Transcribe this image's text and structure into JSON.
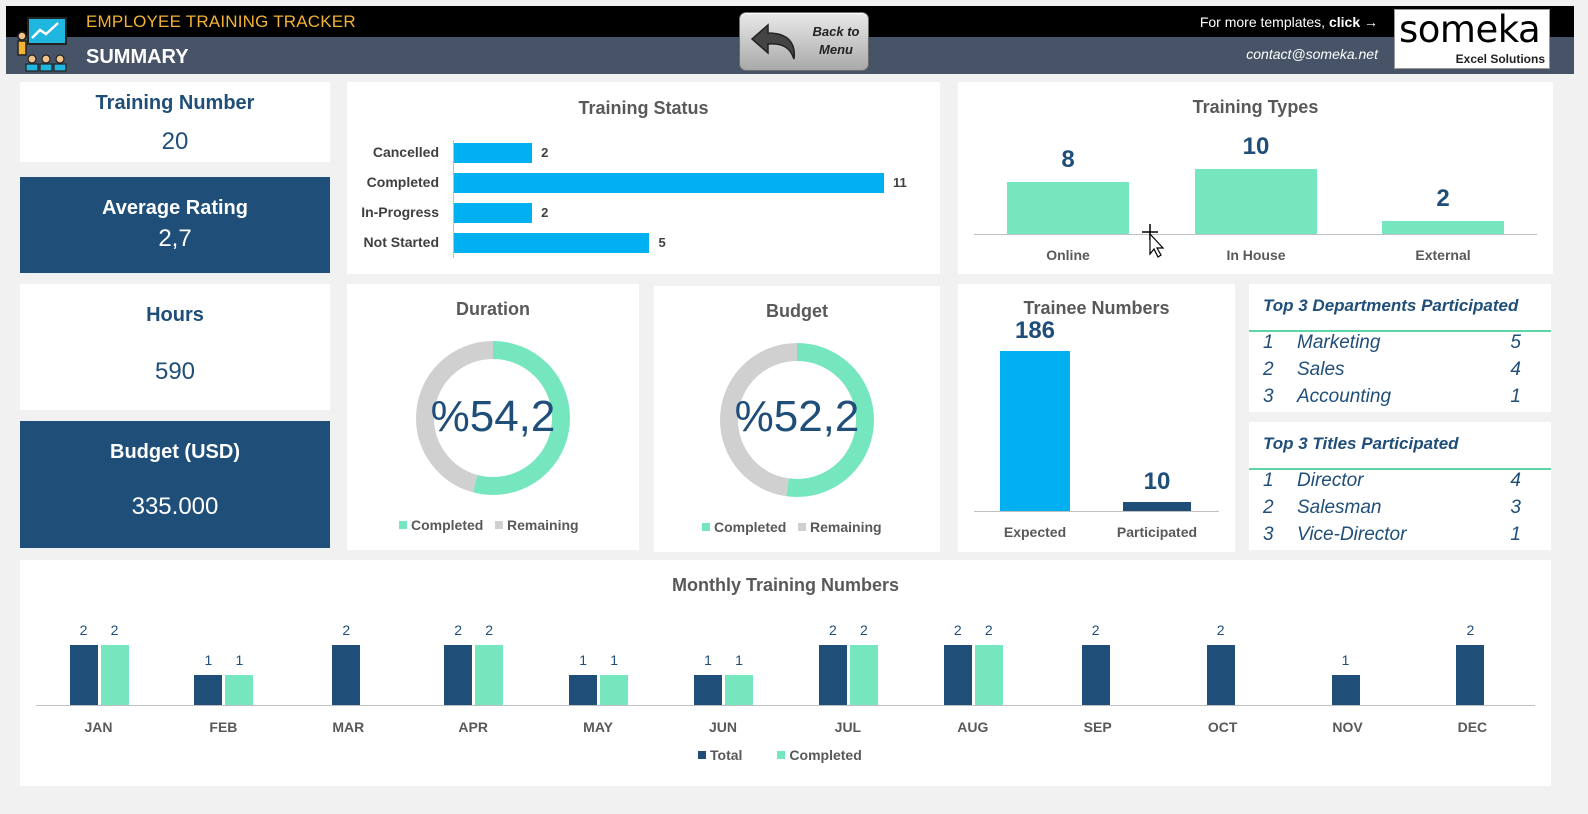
{
  "header": {
    "title": "EMPLOYEE TRAINING TRACKER",
    "subtitle": "SUMMARY",
    "back_button": "Back to\nMenu",
    "more_templates": "For more templates, ",
    "more_templates_link": "click →",
    "contact": "contact@someka.net",
    "brand_name": "someka",
    "brand_tagline": "Excel Solutions"
  },
  "kpis": {
    "training_number": {
      "label": "Training Number",
      "value": "20"
    },
    "average_rating": {
      "label": "Average Rating",
      "value": "2,7"
    },
    "hours": {
      "label": "Hours",
      "value": "590"
    },
    "budget": {
      "label": "Budget (USD)",
      "value": "335.000"
    }
  },
  "colors": {
    "navy": "#1f4e79",
    "cyan": "#00b0f0",
    "mint": "#75e6bd",
    "grey": "#d0d0d0"
  },
  "chart_data": [
    {
      "id": "training_status",
      "type": "bar",
      "orientation": "horizontal",
      "title": "Training Status",
      "categories": [
        "Cancelled",
        "Completed",
        "In-Progress",
        "Not Started"
      ],
      "values": [
        2,
        11,
        2,
        5
      ]
    },
    {
      "id": "training_types",
      "type": "bar",
      "title": "Training Types",
      "categories": [
        "Online",
        "In House",
        "External"
      ],
      "values": [
        8,
        10,
        2
      ]
    },
    {
      "id": "duration",
      "type": "pie",
      "title": "Duration",
      "center_label": "%54,2",
      "slices": [
        {
          "name": "Completed",
          "value": 54.2
        },
        {
          "name": "Remaining",
          "value": 45.8
        }
      ]
    },
    {
      "id": "budget",
      "type": "pie",
      "title": "Budget",
      "center_label": "%52,2",
      "slices": [
        {
          "name": "Completed",
          "value": 52.2
        },
        {
          "name": "Remaining",
          "value": 47.8
        }
      ]
    },
    {
      "id": "trainee_numbers",
      "type": "bar",
      "title": "Trainee Numbers",
      "categories": [
        "Expected",
        "Participated"
      ],
      "values": [
        186,
        10
      ]
    },
    {
      "id": "monthly",
      "type": "bar",
      "title": "Monthly Training Numbers",
      "categories": [
        "JAN",
        "FEB",
        "MAR",
        "APR",
        "MAY",
        "JUN",
        "JUL",
        "AUG",
        "SEP",
        "OCT",
        "NOV",
        "DEC"
      ],
      "series": [
        {
          "name": "Total",
          "values": [
            2,
            1,
            2,
            2,
            1,
            1,
            2,
            2,
            2,
            2,
            1,
            2
          ]
        },
        {
          "name": "Completed",
          "values": [
            2,
            1,
            null,
            2,
            1,
            1,
            2,
            2,
            null,
            null,
            null,
            null
          ]
        }
      ],
      "legend": "bottom"
    }
  ],
  "top_departments": {
    "title": "Top 3 Departments Participated",
    "rows": [
      {
        "rank": "1",
        "name": "Marketing",
        "count": "5"
      },
      {
        "rank": "2",
        "name": "Sales",
        "count": "4"
      },
      {
        "rank": "3",
        "name": "Accounting",
        "count": "1"
      }
    ]
  },
  "top_titles": {
    "title": "Top 3 Titles Participated",
    "rows": [
      {
        "rank": "1",
        "name": "Director",
        "count": "4"
      },
      {
        "rank": "2",
        "name": "Salesman",
        "count": "3"
      },
      {
        "rank": "3",
        "name": "Vice-Director",
        "count": "1"
      }
    ]
  }
}
